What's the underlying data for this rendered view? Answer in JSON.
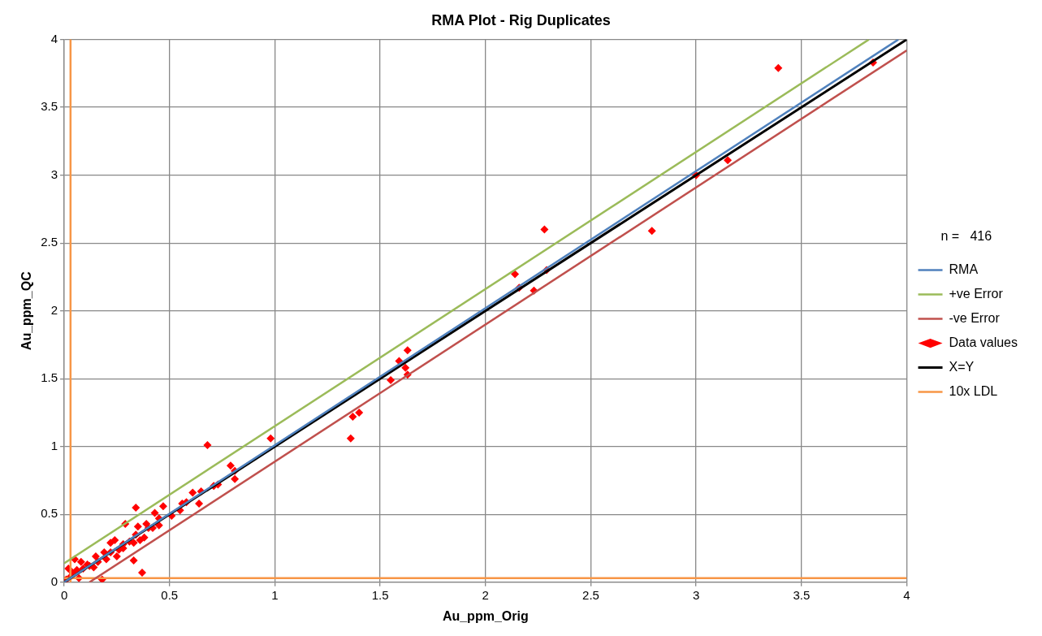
{
  "chart_data": {
    "type": "scatter",
    "title": "RMA Plot - Rig Duplicates",
    "xlabel": "Au_ppm_Orig",
    "ylabel": "Au_ppm_QC",
    "legend_title": "n =   416",
    "legend": "right",
    "grid": true,
    "xlim": [
      0,
      4
    ],
    "ylim": [
      0,
      4
    ],
    "xticks": [
      0,
      0.5,
      1,
      1.5,
      2,
      2.5,
      3,
      3.5,
      4
    ],
    "yticks": [
      0,
      0.5,
      1,
      1.5,
      2,
      2.5,
      3,
      3.5,
      4
    ],
    "series": [
      {
        "type": "line",
        "name": "RMA",
        "marker": "none",
        "color": "#4f81bd",
        "x": [
          0,
          3.96
        ],
        "values": [
          0,
          4
        ]
      },
      {
        "type": "line",
        "name": "+ve Error",
        "marker": "none",
        "color": "#9bbb59",
        "x": [
          0,
          3.82
        ],
        "values": [
          0.14,
          4
        ]
      },
      {
        "type": "line",
        "name": "-ve Error",
        "marker": "none",
        "color": "#c0504d",
        "x": [
          0.12,
          4
        ],
        "values": [
          0,
          3.92
        ]
      },
      {
        "type": "scatter",
        "name": "Data values",
        "marker": "diamond",
        "color": "#ff0000",
        "x": [
          3.39,
          3.84,
          3.15,
          3.0,
          2.79,
          2.28,
          2.29,
          2.14,
          2.16,
          2.23,
          1.63,
          1.59,
          1.62,
          1.63,
          1.55,
          1.4,
          1.37,
          1.36,
          0.98,
          0.68,
          0.79,
          0.81,
          0.81,
          0.71,
          0.73,
          0.61,
          0.65,
          0.64,
          0.47,
          0.58,
          0.56,
          0.55,
          0.51,
          0.34,
          0.43,
          0.45,
          0.45,
          0.29,
          0.39,
          0.35,
          0.4,
          0.34,
          0.38,
          0.36,
          0.33,
          0.28,
          0.24,
          0.22,
          0.25,
          0.19,
          0.15,
          0.14,
          0.11,
          0.08,
          0.05,
          0.33,
          0.37,
          0.18,
          0.06,
          0.02,
          0.03,
          0.0,
          0.07,
          0.16,
          0.28,
          0.26,
          0.01,
          0.04,
          0.09,
          0.12,
          0.2,
          0.22,
          0.31,
          0.42
        ],
        "values": [
          3.79,
          3.83,
          3.11,
          3.0,
          2.59,
          2.6,
          2.3,
          2.27,
          2.17,
          2.15,
          1.71,
          1.63,
          1.58,
          1.53,
          1.49,
          1.25,
          1.22,
          1.06,
          1.06,
          1.01,
          0.86,
          0.82,
          0.76,
          0.71,
          0.72,
          0.66,
          0.67,
          0.58,
          0.56,
          0.59,
          0.58,
          0.53,
          0.49,
          0.55,
          0.51,
          0.47,
          0.42,
          0.43,
          0.43,
          0.41,
          0.4,
          0.35,
          0.33,
          0.31,
          0.29,
          0.25,
          0.31,
          0.29,
          0.19,
          0.22,
          0.19,
          0.11,
          0.13,
          0.15,
          0.17,
          0.16,
          0.07,
          0.02,
          0.09,
          0.1,
          0.04,
          0.01,
          0.03,
          0.15,
          0.28,
          0.24,
          0.02,
          0.07,
          0.1,
          0.12,
          0.17,
          0.22,
          0.3,
          0.4
        ]
      },
      {
        "type": "line",
        "name": "X=Y",
        "marker": "none",
        "color": "#000000",
        "x": [
          0,
          4
        ],
        "values": [
          0,
          4
        ]
      },
      {
        "type": "line",
        "name": "10x LDL",
        "marker": "none",
        "color": "#f79646",
        "x": [
          0.03,
          0.03,
          0.03,
          0,
          4
        ],
        "values": [
          4,
          0,
          0.03,
          0.03,
          0.03
        ]
      }
    ]
  }
}
